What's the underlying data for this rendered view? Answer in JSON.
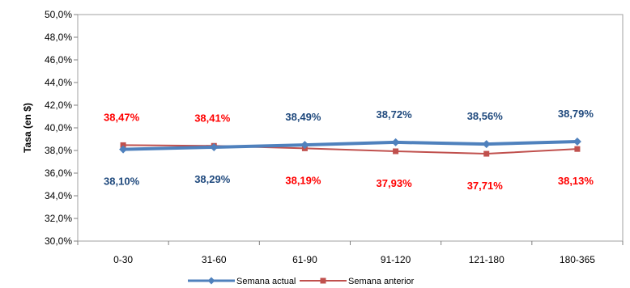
{
  "chart_data": {
    "type": "line",
    "categories": [
      "0-30",
      "31-60",
      "61-90",
      "91-120",
      "121-180",
      "180-365"
    ],
    "ylabel": "Tasa (en $)",
    "ylim": [
      30,
      50
    ],
    "y_ticks": [
      "30,0%",
      "32,0%",
      "34,0%",
      "36,0%",
      "38,0%",
      "40,0%",
      "42,0%",
      "44,0%",
      "46,0%",
      "48,0%",
      "50,0%"
    ],
    "grid": false,
    "legend_position": "bottom",
    "series": [
      {
        "name": "Semana actual",
        "values": [
          38.1,
          38.29,
          38.49,
          38.72,
          38.56,
          38.79
        ],
        "labels": [
          "38,10%",
          "38,29%",
          "38,49%",
          "38,72%",
          "38,56%",
          "38,79%"
        ],
        "color": "#4F81BD",
        "label_color": "#1F497D",
        "marker": "diamond"
      },
      {
        "name": "Semana anterior",
        "values": [
          38.47,
          38.41,
          38.19,
          37.93,
          37.71,
          38.13
        ],
        "labels": [
          "38,47%",
          "38,41%",
          "38,19%",
          "37,93%",
          "37,71%",
          "38,13%"
        ],
        "color": "#C0504D",
        "label_color": "#FF0000",
        "marker": "square"
      }
    ]
  }
}
